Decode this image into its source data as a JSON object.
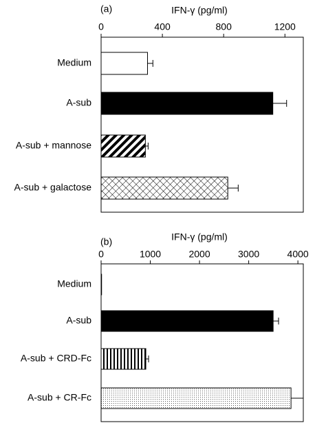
{
  "chart_data": [
    {
      "type": "bar",
      "orientation": "horizontal",
      "panel_label": "(a)",
      "x_label": "IFN-γ (pg/ml)",
      "categories": [
        "Medium",
        "A-sub",
        "A-sub + mannose",
        "A-sub + galactose"
      ],
      "values": [
        303,
        1121,
        289,
        827
      ],
      "errors": [
        35,
        90,
        18,
        68
      ],
      "patterns": [
        "white",
        "black",
        "diagonal",
        "crosshatch"
      ],
      "xlim": [
        0,
        1320
      ],
      "xticks": [
        0,
        400,
        800,
        1200
      ]
    },
    {
      "type": "bar",
      "orientation": "horizontal",
      "panel_label": "(b)",
      "x_label": "IFN-γ (pg/ml)",
      "categories": [
        "Medium",
        "A-sub",
        "A-sub + CRD-Fc",
        "A-sub + CR-Fc"
      ],
      "values": [
        10,
        3497,
        909,
        3860
      ],
      "errors": [
        0,
        110,
        56,
        250
      ],
      "patterns": [
        "white",
        "black",
        "vertical",
        "dots"
      ],
      "xlim": [
        0,
        4110
      ],
      "xticks": [
        0,
        1000,
        2000,
        3000,
        4000
      ]
    }
  ]
}
